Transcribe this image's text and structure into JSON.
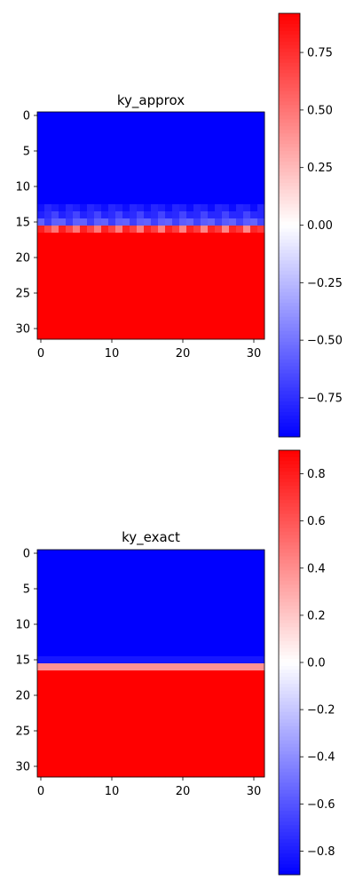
{
  "chart_data": [
    {
      "type": "heatmap",
      "title": "ky_approx",
      "xlabel": "",
      "ylabel": "",
      "colormap": "bwr",
      "rows": 32,
      "cols": 32,
      "xlim": [
        -0.5,
        31.5
      ],
      "ylim": [
        31.5,
        -0.5
      ],
      "x_ticks": [
        0,
        10,
        20,
        30
      ],
      "y_ticks": [
        0,
        5,
        10,
        15,
        20,
        25,
        30
      ],
      "value_range": [
        -0.9,
        0.9
      ],
      "row_values": [
        -0.9,
        -0.9,
        -0.9,
        -0.9,
        -0.9,
        -0.9,
        -0.9,
        -0.9,
        -0.9,
        -0.9,
        -0.9,
        -0.9,
        -0.9,
        -0.82,
        -0.76,
        -0.62,
        0.35,
        0.9,
        0.9,
        0.9,
        0.9,
        0.9,
        0.9,
        0.9,
        0.9,
        0.9,
        0.9,
        0.9,
        0.9,
        0.9,
        0.9,
        0.9
      ],
      "row_pattern_amplitude": {
        "13": 0.06,
        "14": 0.1,
        "15": 0.08,
        "16": 0.45
      },
      "colorbar": {
        "vmin": -0.92,
        "vmax": 0.92,
        "ticks": [
          -0.75,
          -0.5,
          -0.25,
          0.0,
          0.25,
          0.5,
          0.75
        ],
        "tick_labels": [
          "−0.75",
          "−0.50",
          "−0.25",
          "0.00",
          "0.25",
          "0.50",
          "0.75"
        ]
      }
    },
    {
      "type": "heatmap",
      "title": "ky_exact",
      "xlabel": "",
      "ylabel": "",
      "colormap": "bwr",
      "rows": 32,
      "cols": 32,
      "xlim": [
        -0.5,
        31.5
      ],
      "ylim": [
        31.5,
        -0.5
      ],
      "x_ticks": [
        0,
        10,
        20,
        30
      ],
      "y_ticks": [
        0,
        5,
        10,
        15,
        20,
        25,
        30
      ],
      "value_range": [
        -0.9,
        0.9
      ],
      "row_values": [
        -0.9,
        -0.9,
        -0.9,
        -0.9,
        -0.9,
        -0.9,
        -0.9,
        -0.9,
        -0.9,
        -0.9,
        -0.9,
        -0.9,
        -0.9,
        -0.9,
        -0.9,
        -0.82,
        0.38,
        0.9,
        0.9,
        0.9,
        0.9,
        0.9,
        0.9,
        0.9,
        0.9,
        0.9,
        0.9,
        0.9,
        0.9,
        0.9,
        0.9,
        0.9
      ],
      "row_pattern_amplitude": {},
      "colorbar": {
        "vmin": -0.9,
        "vmax": 0.9,
        "ticks": [
          -0.8,
          -0.6,
          -0.4,
          -0.2,
          0.0,
          0.2,
          0.4,
          0.6,
          0.8
        ],
        "tick_labels": [
          "−0.8",
          "−0.6",
          "−0.4",
          "−0.2",
          "0.0",
          "0.2",
          "0.4",
          "0.6",
          "0.8"
        ]
      }
    }
  ]
}
